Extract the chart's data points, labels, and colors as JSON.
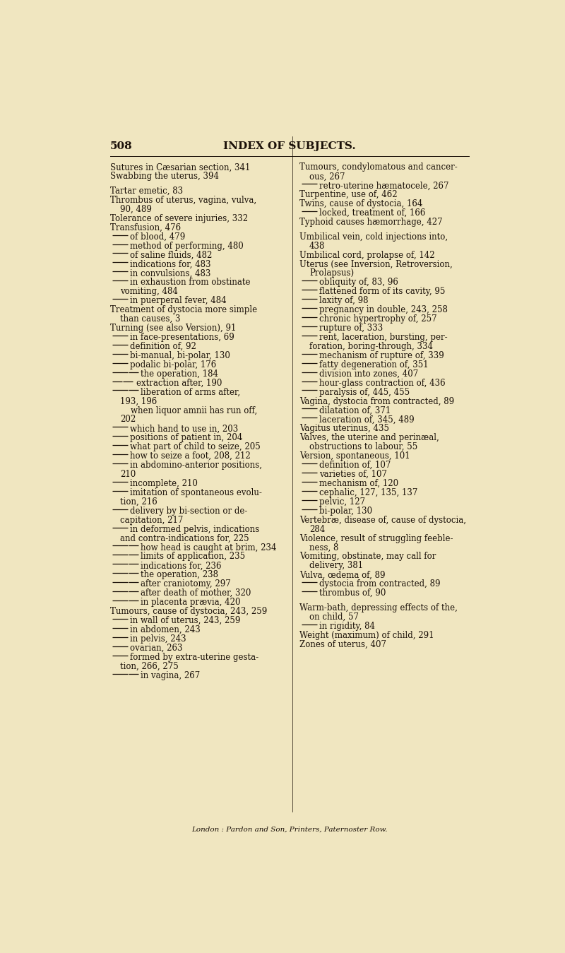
{
  "bg_color": "#f0e6c0",
  "text_color": "#1a1008",
  "page_number": "508",
  "header": "INDEX OF SUBJECTS.",
  "footer": "London : Pardon and Son, Printers, Paternoster Row.",
  "left_column": [
    {
      "indent": 0,
      "text": "Sutures in Cæsarian section, 341"
    },
    {
      "indent": 0,
      "text": "Swabbing the uterus, 394"
    },
    {
      "indent": 0,
      "text": ""
    },
    {
      "indent": 0,
      "text": "Tartar emetic, 83"
    },
    {
      "indent": 0,
      "text": "Thrombus of uterus, vagina, vulva,"
    },
    {
      "indent": 1,
      "text": "90, 489"
    },
    {
      "indent": 0,
      "text": "Tolerance of severe injuries, 332"
    },
    {
      "indent": 0,
      "text": "Transfusion, 476"
    },
    {
      "indent": 2,
      "text": "of blood, 479",
      "dash": true
    },
    {
      "indent": 2,
      "text": "method of performing, 480",
      "dash": true
    },
    {
      "indent": 2,
      "text": "of saline fluids, 482",
      "dash": true
    },
    {
      "indent": 2,
      "text": "indications for, 483",
      "dash": true
    },
    {
      "indent": 2,
      "text": "in convulsions, 483",
      "dash": true
    },
    {
      "indent": 2,
      "text": "in exhaustion from obstinate",
      "dash": true
    },
    {
      "indent": 1,
      "text": "vomiting, 484"
    },
    {
      "indent": 2,
      "text": "in puerperal fever, 484",
      "dash": true
    },
    {
      "indent": 0,
      "text": "Treatment of dystocia more simple"
    },
    {
      "indent": 1,
      "text": "than causes, 3"
    },
    {
      "indent": 0,
      "text": "Turning (see also Version), 91"
    },
    {
      "indent": 2,
      "text": "in face-presentations, 69",
      "dash": true
    },
    {
      "indent": 2,
      "text": "definition of, 92",
      "dash": true
    },
    {
      "indent": 2,
      "text": "bi-manual, bi-polar, 130",
      "dash": true
    },
    {
      "indent": 2,
      "text": "podalic bi-polar, 176",
      "dash": true
    },
    {
      "indent": 3,
      "text": "the operation, 184",
      "dash": true
    },
    {
      "indent": 3,
      "text": "extraction after, 190",
      "dash2": true
    },
    {
      "indent": 3,
      "text": "liberation of arms after,",
      "dash": true
    },
    {
      "indent": 1,
      "text": "193, 196"
    },
    {
      "indent": 2,
      "text": "when liquor amnii has run off,",
      "dash": false
    },
    {
      "indent": 1,
      "text": "202"
    },
    {
      "indent": 2,
      "text": "which hand to use in, 203",
      "dash": true
    },
    {
      "indent": 2,
      "text": "positions of patient in, 204",
      "dash": true
    },
    {
      "indent": 2,
      "text": "what part of child to seize, 205",
      "dash": true
    },
    {
      "indent": 2,
      "text": "how to seize a foot, 208, 212",
      "dash": true
    },
    {
      "indent": 2,
      "text": "in abdomino-anterior positions,",
      "dash": true
    },
    {
      "indent": 1,
      "text": "210"
    },
    {
      "indent": 2,
      "text": "incomplete, 210",
      "dash": true
    },
    {
      "indent": 2,
      "text": "imitation of spontaneous evolu-",
      "dash": true
    },
    {
      "indent": 1,
      "text": "tion, 216"
    },
    {
      "indent": 2,
      "text": "delivery by bi-section or de-",
      "dash": true
    },
    {
      "indent": 1,
      "text": "capitation, 217"
    },
    {
      "indent": 2,
      "text": "in deformed pelvis, indications",
      "dash": true
    },
    {
      "indent": 1,
      "text": "and contra-indications for, 225"
    },
    {
      "indent": 3,
      "text": "how head is caught at brim, 234",
      "dash": true
    },
    {
      "indent": 3,
      "text": "limits of application, 235",
      "dash": true
    },
    {
      "indent": 3,
      "text": "indications for, 236",
      "dash": true
    },
    {
      "indent": 3,
      "text": "the operation, 238",
      "dash": true
    },
    {
      "indent": 3,
      "text": "after craniotomy, 297",
      "dash": true
    },
    {
      "indent": 3,
      "text": "after death of mother, 320",
      "dash": true
    },
    {
      "indent": 3,
      "text": "in placenta prævia, 420",
      "dash": true
    },
    {
      "indent": 0,
      "text": "Tumours, cause of dystocia, 243, 259"
    },
    {
      "indent": 2,
      "text": "in wall of uterus, 243, 259",
      "dash": true
    },
    {
      "indent": 2,
      "text": "in abdomen, 243",
      "dash": true
    },
    {
      "indent": 2,
      "text": "in pelvis, 243",
      "dash": true
    },
    {
      "indent": 2,
      "text": "ovarian, 263",
      "dash": true
    },
    {
      "indent": 2,
      "text": "formed by extra-uterine gesta-",
      "dash": true
    },
    {
      "indent": 1,
      "text": "tion, 266, 275"
    },
    {
      "indent": 3,
      "text": "in vagina, 267",
      "dash": true
    }
  ],
  "right_column": [
    {
      "indent": 0,
      "text": "Tumours, condylomatous and cancer-"
    },
    {
      "indent": 1,
      "text": "ous, 267"
    },
    {
      "indent": 2,
      "text": "retro-uterine hæmatocele, 267",
      "dash": true
    },
    {
      "indent": 0,
      "text": "Turpentine, use of, 462"
    },
    {
      "indent": 0,
      "text": "Twins, cause of dystocia, 164"
    },
    {
      "indent": 2,
      "text": "locked, treatment of, 166",
      "dash": true
    },
    {
      "indent": 0,
      "text": "Typhoid causes hæmorrhage, 427"
    },
    {
      "indent": 0,
      "text": ""
    },
    {
      "indent": 0,
      "text": "Umbilical vein, cold injections into,"
    },
    {
      "indent": 1,
      "text": "438"
    },
    {
      "indent": 0,
      "text": "Umbilical cord, prolapse of, 142"
    },
    {
      "indent": 0,
      "text": "Uterus (see Inversion, Retroversion,"
    },
    {
      "indent": 1,
      "text": "Prolapsus)"
    },
    {
      "indent": 2,
      "text": "obliquity of, 83, 96",
      "dash": true
    },
    {
      "indent": 2,
      "text": "flattened form of its cavity, 95",
      "dash": true
    },
    {
      "indent": 2,
      "text": "laxity of, 98",
      "dash": true
    },
    {
      "indent": 2,
      "text": "pregnancy in double, 243, 258",
      "dash": true
    },
    {
      "indent": 2,
      "text": "chronic hypertrophy of, 257",
      "dash": true
    },
    {
      "indent": 2,
      "text": "rupture of, 333",
      "dash": true
    },
    {
      "indent": 2,
      "text": "rent, laceration, bursting, per-",
      "dash": true
    },
    {
      "indent": 1,
      "text": "foration, boring-through, 334"
    },
    {
      "indent": 2,
      "text": "mechanism of rupture of, 339",
      "dash": true
    },
    {
      "indent": 2,
      "text": "fatty degeneration of, 351",
      "dash": true
    },
    {
      "indent": 2,
      "text": "division into zones, 407",
      "dash": true
    },
    {
      "indent": 2,
      "text": "hour-glass contraction of, 436",
      "dash": true
    },
    {
      "indent": 2,
      "text": "paralysis of, 445, 455",
      "dash": true
    },
    {
      "indent": 0,
      "text": "Vagina, dystocia from contracted, 89"
    },
    {
      "indent": 2,
      "text": "dilatation of, 371",
      "dash": true
    },
    {
      "indent": 2,
      "text": "laceration of, 345, 489",
      "dash": true
    },
    {
      "indent": 0,
      "text": "Vagitus uterinus, 435"
    },
    {
      "indent": 0,
      "text": "Valves, the uterine and perinæal,"
    },
    {
      "indent": 1,
      "text": "obstructions to labour, 55"
    },
    {
      "indent": 0,
      "text": "Version, spontaneous, 101"
    },
    {
      "indent": 2,
      "text": "definition of, 107",
      "dash": true
    },
    {
      "indent": 2,
      "text": "varieties of, 107",
      "dash": true
    },
    {
      "indent": 2,
      "text": "mechanism of, 120",
      "dash": true
    },
    {
      "indent": 2,
      "text": "cephalic, 127, 135, 137",
      "dash": true
    },
    {
      "indent": 2,
      "text": "pelvic, 127",
      "dash": true
    },
    {
      "indent": 2,
      "text": "bi-polar, 130",
      "dash": true
    },
    {
      "indent": 0,
      "text": "Vertebræ, disease of, cause of dystocia,"
    },
    {
      "indent": 1,
      "text": "284"
    },
    {
      "indent": 0,
      "text": "Violence, result of struggling feeble-"
    },
    {
      "indent": 1,
      "text": "ness, 8"
    },
    {
      "indent": 0,
      "text": "Vomiting, obstinate, may call for"
    },
    {
      "indent": 1,
      "text": "delivery, 381"
    },
    {
      "indent": 0,
      "text": "Vulva, œdema of, 89"
    },
    {
      "indent": 2,
      "text": "dystocia from contracted, 89",
      "dash": true
    },
    {
      "indent": 2,
      "text": "thrombus of, 90",
      "dash": true
    },
    {
      "indent": 0,
      "text": ""
    },
    {
      "indent": 0,
      "text": "Warm-bath, depressing effects of the,"
    },
    {
      "indent": 1,
      "text": "on child, 57"
    },
    {
      "indent": 2,
      "text": "in rigidity, 84",
      "dash": true
    },
    {
      "indent": 0,
      "text": "Weight (maximum) of child, 291"
    },
    {
      "indent": 0,
      "text": "Zones of uterus, 407"
    }
  ]
}
